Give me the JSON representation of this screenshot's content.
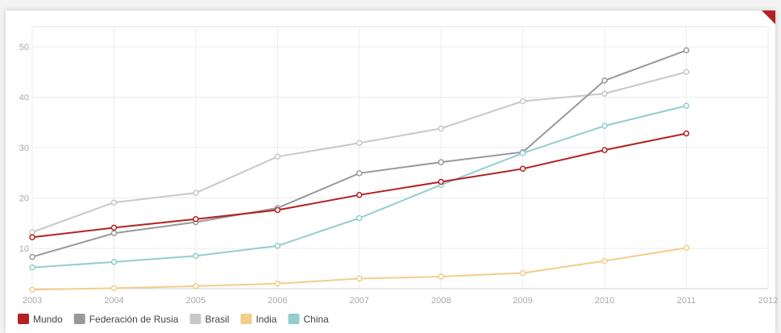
{
  "chart_data": {
    "type": "line",
    "x": [
      2003,
      2004,
      2005,
      2006,
      2007,
      2008,
      2009,
      2010,
      2011
    ],
    "x_ticks": [
      2003,
      2004,
      2005,
      2006,
      2007,
      2008,
      2009,
      2010,
      2011,
      2012
    ],
    "y_ticks": [
      10,
      20,
      30,
      40,
      50
    ],
    "xlim": [
      2003,
      2012
    ],
    "ylim": [
      2,
      54
    ],
    "grid": true,
    "legend_position": "bottom-left",
    "series": [
      {
        "name": "Brasil",
        "color": "#c8c8c8",
        "values": [
          13.2,
          19.1,
          21.0,
          28.2,
          30.9,
          33.8,
          39.2,
          40.7,
          45.0
        ]
      },
      {
        "name": "Federación de Rusia",
        "color": "#999999",
        "values": [
          8.3,
          13.0,
          15.2,
          18.0,
          24.9,
          27.1,
          29.1,
          43.3,
          49.3
        ]
      },
      {
        "name": "China",
        "color": "#94cdd0",
        "values": [
          6.2,
          7.3,
          8.5,
          10.5,
          16.0,
          22.6,
          28.9,
          34.3,
          38.3
        ]
      },
      {
        "name": "India",
        "color": "#f3cd8a",
        "values": [
          1.8,
          2.1,
          2.5,
          3.0,
          4.0,
          4.4,
          5.1,
          7.5,
          10.1
        ]
      },
      {
        "name": "Mundo",
        "color": "#b22222",
        "values": [
          12.2,
          14.1,
          15.8,
          17.6,
          20.6,
          23.2,
          25.8,
          29.5,
          32.8
        ]
      }
    ],
    "legend": [
      {
        "name": "Mundo",
        "color": "#b22222"
      },
      {
        "name": "Federación de Rusia",
        "color": "#999999"
      },
      {
        "name": "Brasil",
        "color": "#c8c8c8"
      },
      {
        "name": "India",
        "color": "#f3cd8a"
      },
      {
        "name": "China",
        "color": "#94cdd0"
      }
    ]
  }
}
